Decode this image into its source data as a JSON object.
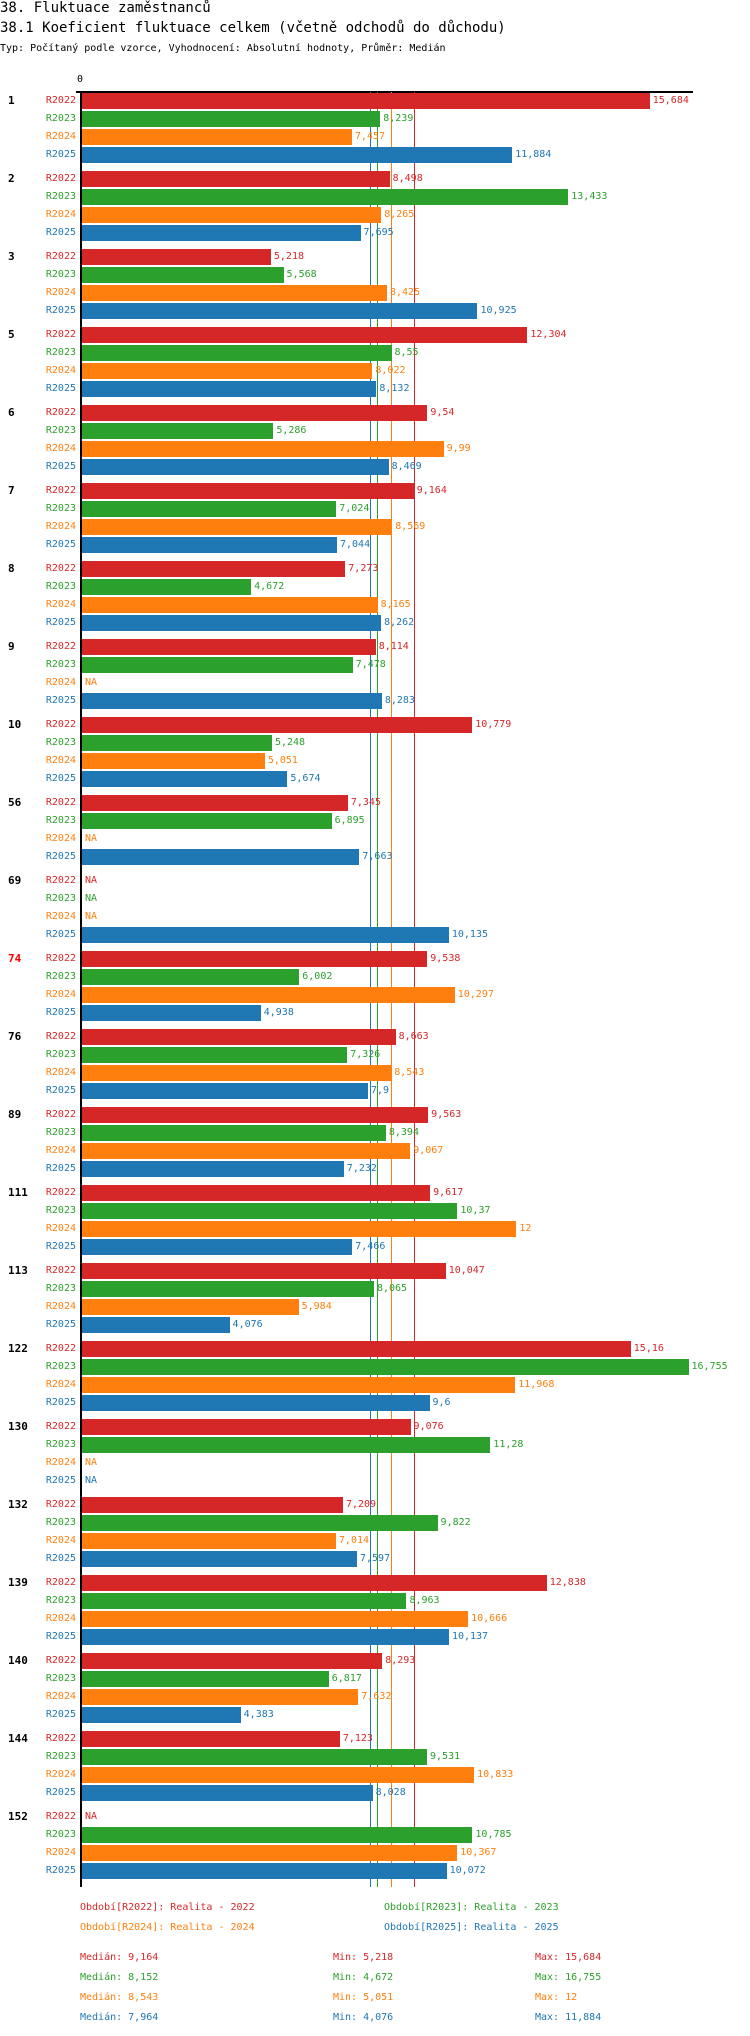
{
  "header": {
    "title": "38. Fluktuace zaměstnanců",
    "subtitle": "38.1 Koeficient fluktuace celkem (včetně odchodů do důchodu)",
    "info": "Typ: Počítaný podle vzorce, Vyhodnocení: Absolutní hodnoty, Průměr: Medián"
  },
  "chart_data": {
    "type": "bar",
    "orientation": "horizontal",
    "axis_tick": "0",
    "series_names": [
      "R2022",
      "R2023",
      "R2024",
      "R2025"
    ],
    "colors": {
      "R2022": "#d62728",
      "R2023": "#2ca02c",
      "R2024": "#ff7f0e",
      "R2025": "#1f77b4"
    },
    "highlight_color": "#ff0000",
    "groups": [
      {
        "label": "1",
        "values": [
          "15,684",
          "8,239",
          "7,457",
          "11,884"
        ]
      },
      {
        "label": "2",
        "values": [
          "8,498",
          "13,433",
          "8,265",
          "7,695"
        ]
      },
      {
        "label": "3",
        "values": [
          "5,218",
          "5,568",
          "8,425",
          "10,925"
        ]
      },
      {
        "label": "5",
        "values": [
          "12,304",
          "8,55",
          "8,022",
          "8,132"
        ]
      },
      {
        "label": "6",
        "values": [
          "9,54",
          "5,286",
          "9,99",
          "8,469"
        ]
      },
      {
        "label": "7",
        "values": [
          "9,164",
          "7,024",
          "8,569",
          "7,044"
        ]
      },
      {
        "label": "8",
        "values": [
          "7,273",
          "4,672",
          "8,165",
          "8,262"
        ]
      },
      {
        "label": "9",
        "values": [
          "8,114",
          "7,478",
          "NA",
          "8,283"
        ]
      },
      {
        "label": "10",
        "values": [
          "10,779",
          "5,248",
          "5,051",
          "5,674"
        ]
      },
      {
        "label": "56",
        "values": [
          "7,345",
          "6,895",
          "NA",
          "7,663"
        ]
      },
      {
        "label": "69",
        "values": [
          "NA",
          "NA",
          "NA",
          "10,135"
        ]
      },
      {
        "label": "74",
        "highlight": true,
        "values": [
          "9,538",
          "6,002",
          "10,297",
          "4,938"
        ]
      },
      {
        "label": "76",
        "values": [
          "8,663",
          "7,326",
          "8,543",
          "7,9"
        ]
      },
      {
        "label": "89",
        "values": [
          "9,563",
          "8,394",
          "9,067",
          "7,232"
        ]
      },
      {
        "label": "111",
        "values": [
          "9,617",
          "10,37",
          "12",
          "7,466"
        ]
      },
      {
        "label": "113",
        "values": [
          "10,047",
          "8,065",
          "5,984",
          "4,076"
        ]
      },
      {
        "label": "122",
        "values": [
          "15,16",
          "16,755",
          "11,968",
          "9,6"
        ]
      },
      {
        "label": "130",
        "values": [
          "9,076",
          "11,28",
          "NA",
          "NA"
        ]
      },
      {
        "label": "132",
        "values": [
          "7,209",
          "9,822",
          "7,014",
          "7,597"
        ]
      },
      {
        "label": "139",
        "values": [
          "12,838",
          "8,963",
          "10,666",
          "10,137"
        ]
      },
      {
        "label": "140",
        "values": [
          "8,293",
          "6,817",
          "7,632",
          "4,383"
        ]
      },
      {
        "label": "144",
        "values": [
          "7,123",
          "9,531",
          "10,833",
          "8,028"
        ]
      },
      {
        "label": "152",
        "values": [
          "NA",
          "10,785",
          "10,367",
          "10,072"
        ]
      }
    ],
    "medians": {
      "R2022": 9.164,
      "R2023": 8.152,
      "R2024": 8.543,
      "R2025": 7.964
    },
    "legend": [
      {
        "series": "R2022",
        "text": "Období[R2022]: Realita - 2022"
      },
      {
        "series": "R2023",
        "text": "Období[R2023]: Realita - 2023"
      },
      {
        "series": "R2024",
        "text": "Období[R2024]: Realita - 2024"
      },
      {
        "series": "R2025",
        "text": "Období[R2025]: Realita - 2025"
      }
    ],
    "stats": [
      {
        "series": "R2022",
        "median": "Medián: 9,164",
        "min": "Min: 5,218",
        "max": "Max: 15,684"
      },
      {
        "series": "R2023",
        "median": "Medián: 8,152",
        "min": "Min: 4,672",
        "max": "Max: 16,755"
      },
      {
        "series": "R2024",
        "median": "Medián: 8,543",
        "min": "Min: 5,051",
        "max": "Max: 12"
      },
      {
        "series": "R2025",
        "median": "Medián: 7,964",
        "min": "Min: 4,076",
        "max": "Max: 11,884"
      }
    ]
  }
}
